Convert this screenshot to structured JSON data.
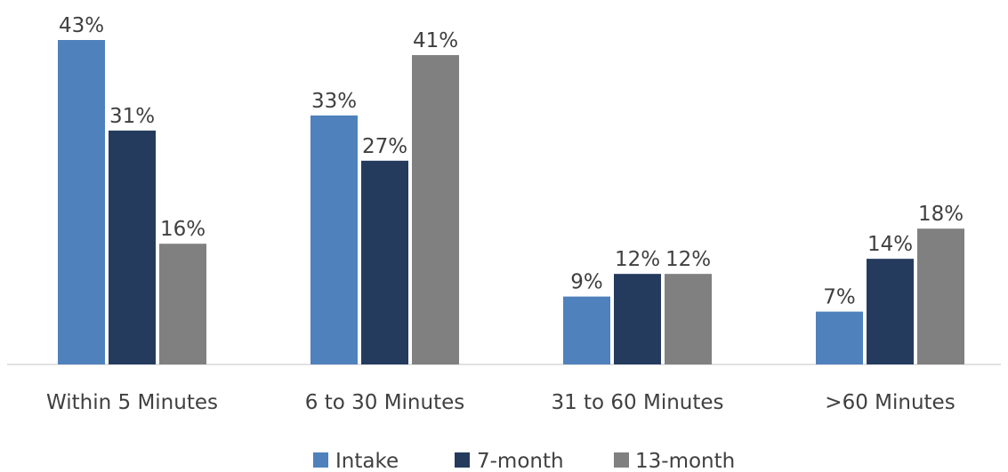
{
  "chart_data": {
    "type": "bar",
    "categories": [
      "Within 5 Minutes",
      "6 to 30 Minutes",
      "31 to 60 Minutes",
      ">60 Minutes"
    ],
    "series": [
      {
        "name": "Intake",
        "color": "#4f81bd",
        "values": [
          43,
          33,
          9,
          7
        ],
        "labels": [
          "43%",
          "33%",
          "9%",
          "7%"
        ]
      },
      {
        "name": "7-month",
        "color": "#243b5e",
        "values": [
          31,
          27,
          12,
          14
        ],
        "labels": [
          "31%",
          "27%",
          "12%",
          "14%"
        ]
      },
      {
        "name": "13-month",
        "color": "#808080",
        "values": [
          16,
          41,
          12,
          18
        ],
        "labels": [
          "16%",
          "41%",
          "12%",
          "18%"
        ]
      }
    ],
    "unit": "%",
    "ylim": [
      0,
      43
    ],
    "grid": false,
    "legend_position": "bottom-center"
  }
}
